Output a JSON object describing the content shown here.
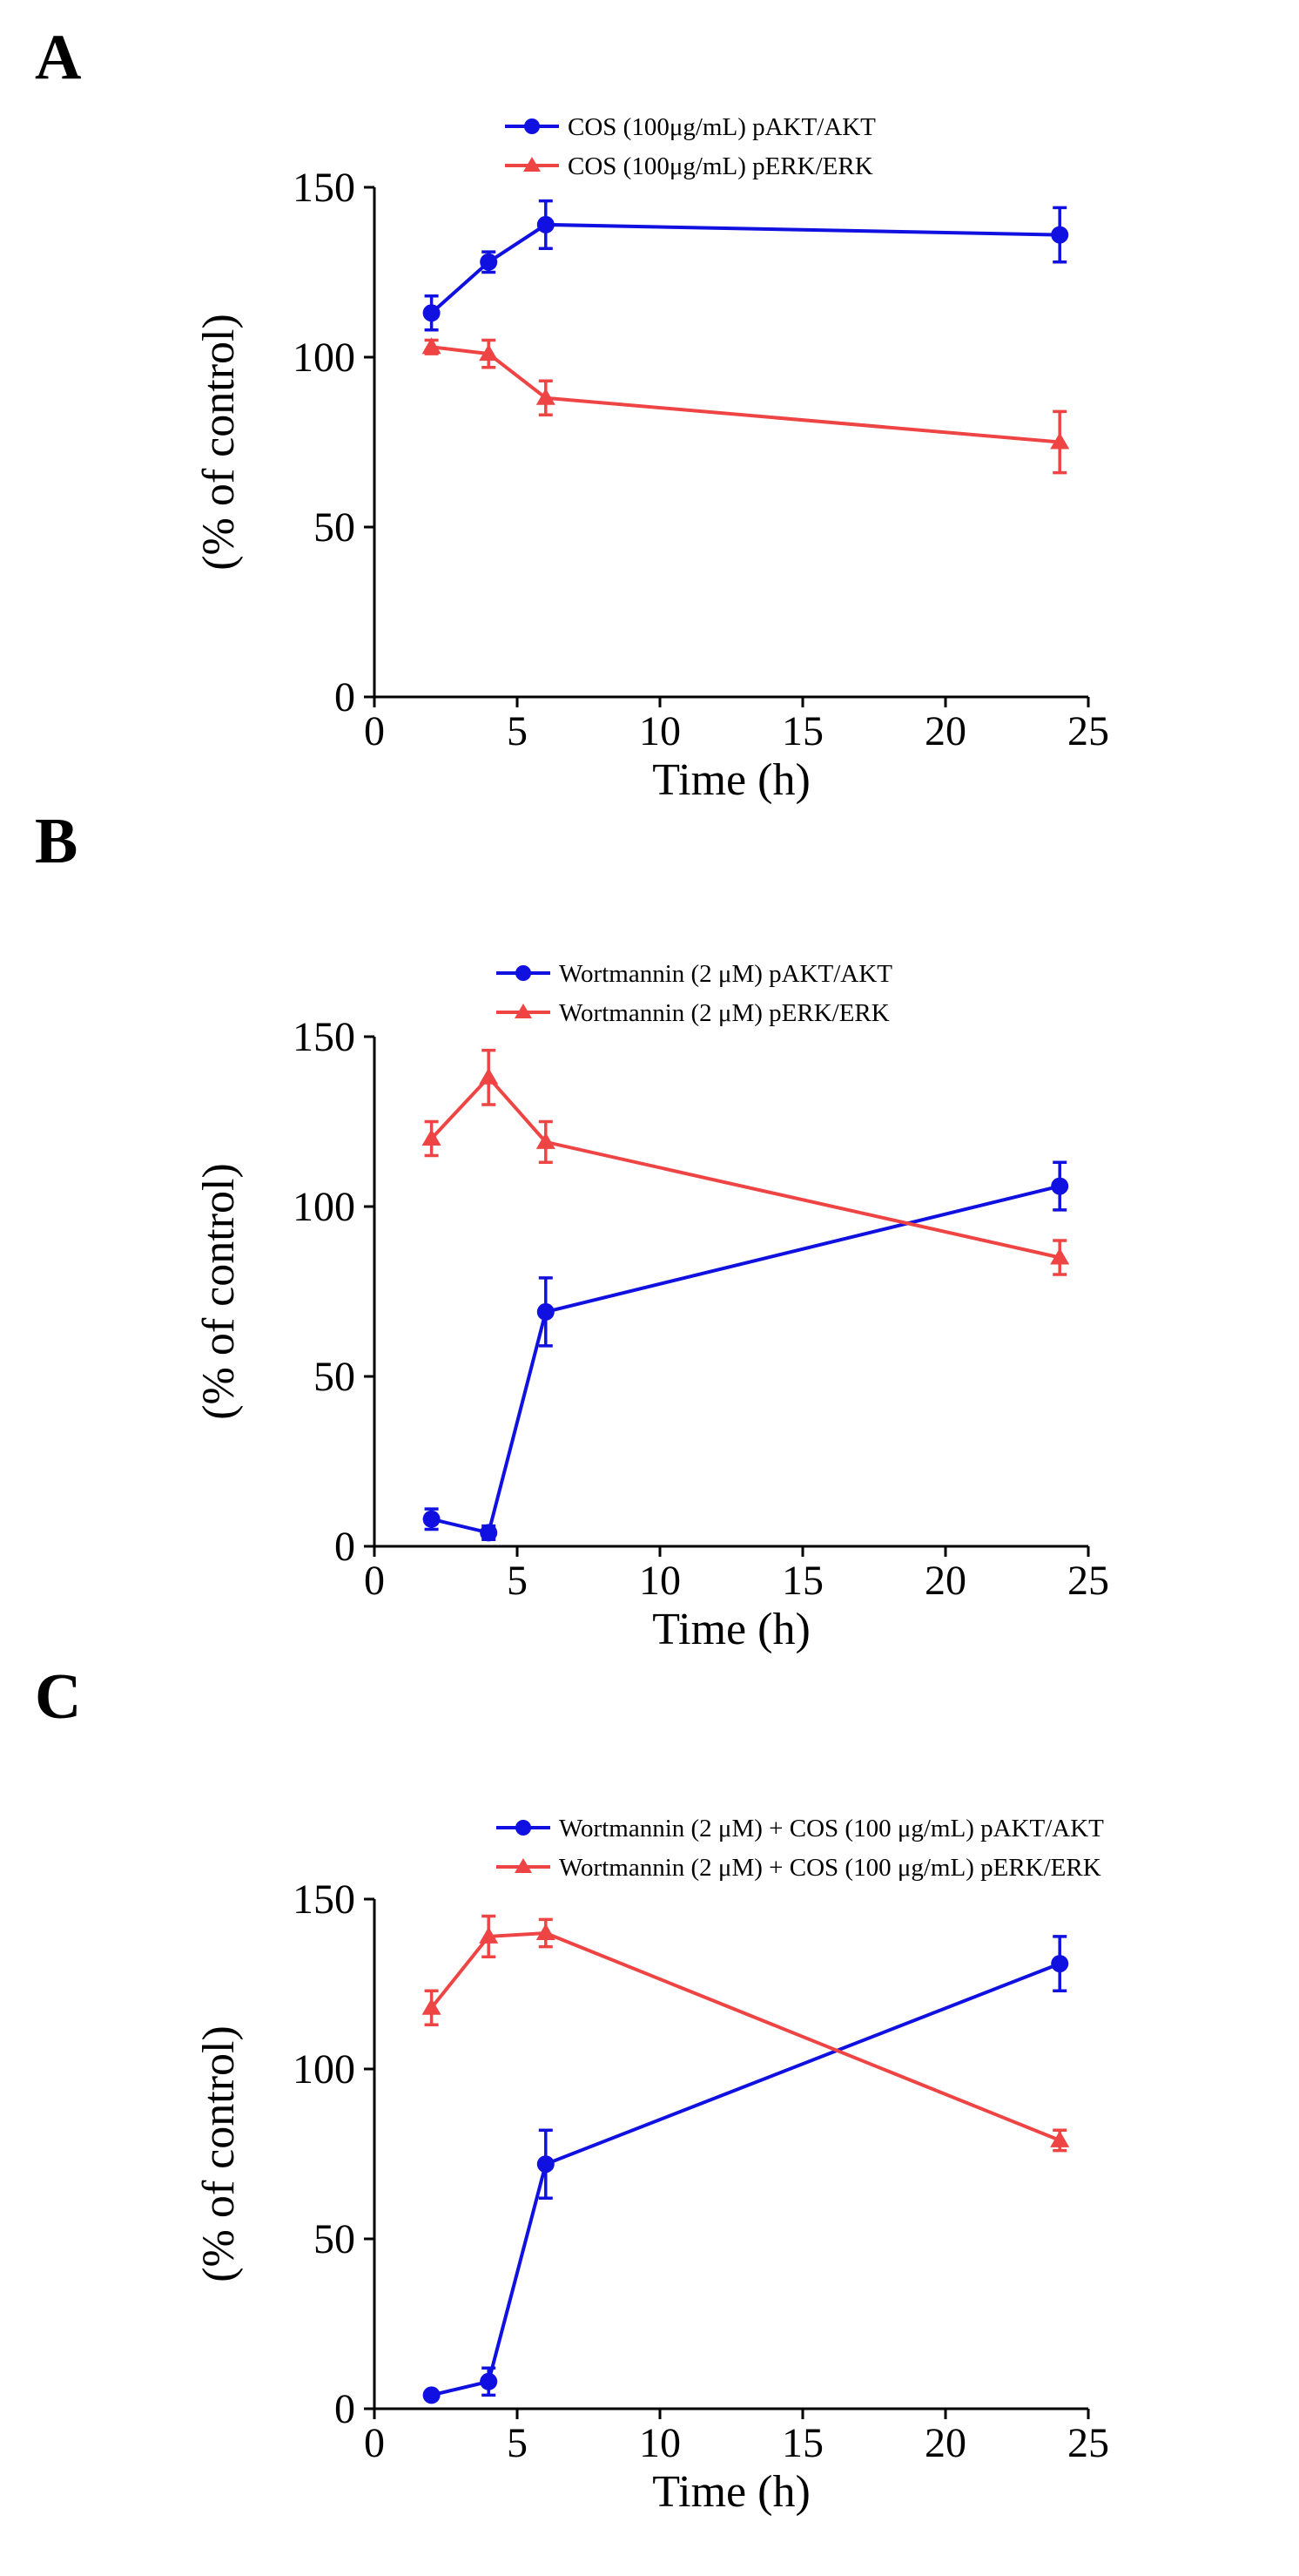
{
  "chart_data": [
    {
      "type": "line",
      "panel_label": "A",
      "title": "",
      "xlabel": "Time (h)",
      "ylabel": "(% of control)",
      "xlim": [
        0,
        25
      ],
      "ylim": [
        0,
        150
      ],
      "xticks": [
        0,
        5,
        10,
        15,
        20,
        25
      ],
      "yticks": [
        0,
        50,
        100,
        150
      ],
      "grid": false,
      "legend_position": "top-right",
      "series": [
        {
          "name": "COS (100μg/mL) pAKT/AKT",
          "color": "#1010e0",
          "marker": "circle",
          "x": [
            2,
            4,
            6,
            24
          ],
          "y": [
            113,
            128,
            139,
            136
          ],
          "err": [
            5,
            3,
            7,
            8
          ]
        },
        {
          "name": "COS (100μg/mL) pERK/ERK",
          "color": "#ee4444",
          "marker": "triangle",
          "x": [
            2,
            4,
            6,
            24
          ],
          "y": [
            103,
            101,
            88,
            75
          ],
          "err": [
            2,
            4,
            5,
            9
          ]
        }
      ]
    },
    {
      "type": "line",
      "panel_label": "B",
      "title": "",
      "xlabel": "Time (h)",
      "ylabel": "(% of control)",
      "xlim": [
        0,
        25
      ],
      "ylim": [
        0,
        150
      ],
      "xticks": [
        0,
        5,
        10,
        15,
        20,
        25
      ],
      "yticks": [
        0,
        50,
        100,
        150
      ],
      "grid": false,
      "legend_position": "top-right",
      "series": [
        {
          "name": "Wortmannin (2 μM) pAKT/AKT",
          "color": "#1010e0",
          "marker": "circle",
          "x": [
            2,
            4,
            6,
            24
          ],
          "y": [
            8,
            4,
            69,
            106
          ],
          "err": [
            3,
            2,
            10,
            7
          ]
        },
        {
          "name": "Wortmannin (2 μM) pERK/ERK",
          "color": "#ee4444",
          "marker": "triangle",
          "x": [
            2,
            4,
            6,
            24
          ],
          "y": [
            120,
            138,
            119,
            85
          ],
          "err": [
            5,
            8,
            6,
            5
          ]
        }
      ]
    },
    {
      "type": "line",
      "panel_label": "C",
      "title": "",
      "xlabel": "Time (h)",
      "ylabel": "(% of control)",
      "xlim": [
        0,
        25
      ],
      "ylim": [
        0,
        150
      ],
      "xticks": [
        0,
        5,
        10,
        15,
        20,
        25
      ],
      "yticks": [
        0,
        50,
        100,
        150
      ],
      "grid": false,
      "legend_position": "top-right",
      "series": [
        {
          "name": "Wortmannin (2 μM) + COS (100 μg/mL) pAKT/AKT",
          "color": "#1010e0",
          "marker": "circle",
          "x": [
            2,
            4,
            6,
            24
          ],
          "y": [
            4,
            8,
            72,
            131
          ],
          "err": [
            1,
            4,
            10,
            8
          ]
        },
        {
          "name": "Wortmannin (2 μM) + COS (100 μg/mL) pERK/ERK",
          "color": "#ee4444",
          "marker": "triangle",
          "x": [
            2,
            4,
            6,
            24
          ],
          "y": [
            118,
            139,
            140,
            79
          ],
          "err": [
            5,
            6,
            4,
            3
          ]
        }
      ]
    }
  ]
}
